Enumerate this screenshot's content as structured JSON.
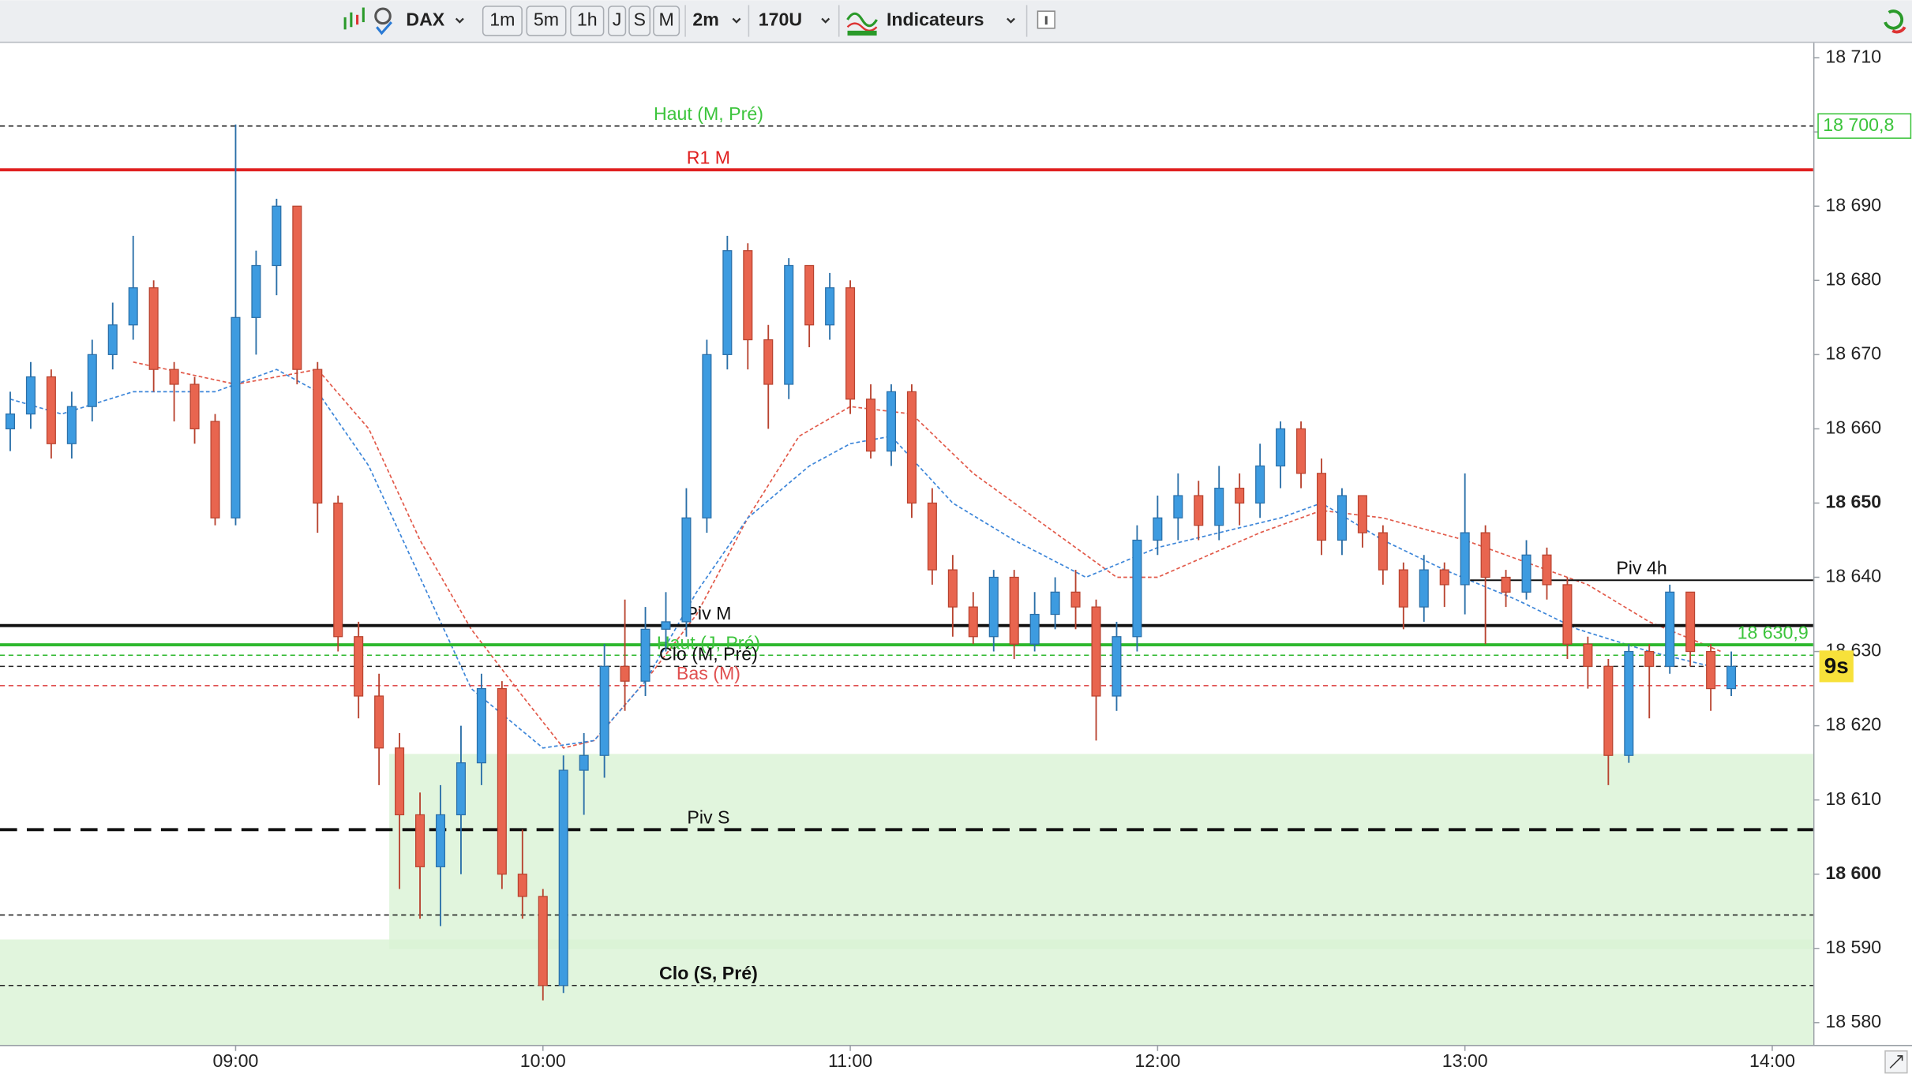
{
  "toolbar": {
    "symbol": "DAX",
    "periods": [
      "1m",
      "5m",
      "1h",
      "J",
      "S",
      "M"
    ],
    "interval": "2m",
    "units": "170U",
    "indicators": "Indicateurs"
  },
  "chart_data": {
    "type": "candlestick",
    "up_color": "#3d9be0",
    "down_color": "#e8654f",
    "xlim": [
      494,
      848
    ],
    "ylim": [
      18577,
      18712
    ],
    "xticks": [
      {
        "value": 540,
        "label": "09:00"
      },
      {
        "value": 600,
        "label": "10:00"
      },
      {
        "value": 660,
        "label": "11:00"
      },
      {
        "value": 720,
        "label": "12:00"
      },
      {
        "value": 780,
        "label": "13:00"
      },
      {
        "value": 840,
        "label": "14:00"
      }
    ],
    "yticks": [
      {
        "value": 18710,
        "label": "18 710"
      },
      {
        "value": 18700,
        "label": "18 700"
      },
      {
        "value": 18690,
        "label": "18 690"
      },
      {
        "value": 18680,
        "label": "18 680"
      },
      {
        "value": 18670,
        "label": "18 670"
      },
      {
        "value": 18660,
        "label": "18 660"
      },
      {
        "value": 18650,
        "label": "18 650"
      },
      {
        "value": 18640,
        "label": "18 640"
      },
      {
        "value": 18630,
        "label": "18 630"
      },
      {
        "value": 18620,
        "label": "18 620"
      },
      {
        "value": 18610,
        "label": "18 610"
      },
      {
        "value": 18600,
        "label": "18 600"
      },
      {
        "value": 18590,
        "label": "18 590"
      },
      {
        "value": 18580,
        "label": "18 580"
      }
    ],
    "x": [
      496,
      500,
      504,
      508,
      512,
      516,
      520,
      524,
      528,
      532,
      536,
      540,
      544,
      548,
      552,
      556,
      560,
      564,
      568,
      572,
      576,
      580,
      584,
      588,
      592,
      596,
      600,
      604,
      608,
      612,
      616,
      620,
      624,
      628,
      632,
      636,
      640,
      644,
      648,
      652,
      656,
      660,
      664,
      668,
      672,
      676,
      680,
      684,
      688,
      692,
      696,
      700,
      704,
      708,
      712,
      716,
      720,
      724,
      728,
      732,
      736,
      740,
      744,
      748,
      752,
      756,
      760,
      764,
      768,
      772,
      776,
      780,
      784,
      788,
      792,
      796,
      800,
      804,
      808,
      812,
      816,
      820,
      824,
      828,
      832
    ],
    "open": [
      18660,
      18662,
      18667,
      18658,
      18663,
      18670,
      18674,
      18679,
      18668,
      18666,
      18661,
      18648,
      18675,
      18682,
      18690,
      18668,
      18650,
      18632,
      18624,
      18617,
      18608,
      18601,
      18608,
      18615,
      18625,
      18600,
      18597,
      18585,
      18614,
      18616,
      18628,
      18626,
      18633,
      18634,
      18648,
      18670,
      18684,
      18672,
      18666,
      18682,
      18674,
      18679,
      18664,
      18657,
      18665,
      18650,
      18641,
      18636,
      18632,
      18640,
      18631,
      18635,
      18638,
      18636,
      18624,
      18632,
      18645,
      18648,
      18651,
      18647,
      18652,
      18650,
      18655,
      18660,
      18654,
      18645,
      18651,
      18646,
      18641,
      18636,
      18641,
      18639,
      18646,
      18640,
      18638,
      18643,
      18639,
      18631,
      18628,
      18616,
      18630,
      18628,
      18638,
      18630,
      18625
    ],
    "high": [
      18665,
      18669,
      18668,
      18665,
      18672,
      18677,
      18686,
      18680,
      18669,
      18667,
      18662,
      18701,
      18684,
      18691,
      18690,
      18669,
      18651,
      18634,
      18627,
      18619,
      18611,
      18612,
      18620,
      18627,
      18626,
      18606,
      18598,
      18616,
      18619,
      18631,
      18637,
      18636,
      18638,
      18652,
      18672,
      18686,
      18685,
      18674,
      18683,
      18682,
      18681,
      18680,
      18666,
      18666,
      18666,
      18652,
      18643,
      18638,
      18641,
      18641,
      18638,
      18640,
      18641,
      18637,
      18634,
      18647,
      18651,
      18654,
      18653,
      18655,
      18654,
      18658,
      18661,
      18661,
      18656,
      18652,
      18651,
      18647,
      18642,
      18643,
      18642,
      18654,
      18647,
      18641,
      18645,
      18644,
      18640,
      18632,
      18629,
      18631,
      18631,
      18639,
      18638,
      18631,
      18630
    ],
    "low": [
      18657,
      18660,
      18656,
      18656,
      18661,
      18668,
      18672,
      18665,
      18661,
      18658,
      18647,
      18647,
      18670,
      18678,
      18666,
      18646,
      18630,
      18621,
      18612,
      18598,
      18594,
      18593,
      18600,
      18612,
      18598,
      18594,
      18583,
      18584,
      18608,
      18613,
      18622,
      18624,
      18630,
      18632,
      18646,
      18668,
      18668,
      18660,
      18664,
      18671,
      18672,
      18662,
      18656,
      18655,
      18648,
      18639,
      18632,
      18631,
      18630,
      18629,
      18630,
      18633,
      18633,
      18618,
      18622,
      18630,
      18643,
      18645,
      18645,
      18645,
      18647,
      18648,
      18652,
      18652,
      18643,
      18643,
      18644,
      18639,
      18633,
      18634,
      18636,
      18635,
      18631,
      18636,
      18637,
      18637,
      18629,
      18625,
      18612,
      18615,
      18621,
      18627,
      18628,
      18622,
      18624
    ],
    "close": [
      18662,
      18667,
      18658,
      18663,
      18670,
      18674,
      18679,
      18668,
      18666,
      18660,
      18648,
      18675,
      18682,
      18690,
      18668,
      18650,
      18632,
      18624,
      18617,
      18608,
      18601,
      18608,
      18615,
      18625,
      18600,
      18597,
      18585,
      18614,
      18616,
      18628,
      18626,
      18633,
      18634,
      18648,
      18670,
      18684,
      18672,
      18666,
      18682,
      18674,
      18679,
      18664,
      18657,
      18665,
      18650,
      18641,
      18636,
      18632,
      18640,
      18631,
      18635,
      18638,
      18636,
      18624,
      18632,
      18645,
      18648,
      18651,
      18647,
      18652,
      18650,
      18655,
      18660,
      18654,
      18645,
      18651,
      18646,
      18641,
      18636,
      18641,
      18639,
      18646,
      18640,
      18638,
      18643,
      18639,
      18631,
      18628,
      18616,
      18630,
      18628,
      18638,
      18630,
      18625,
      18628
    ],
    "overlays": [
      {
        "color": "#e25a4a",
        "x": [
          520,
          540,
          556,
          566,
          576,
          586,
          596,
          604,
          610,
          620,
          630,
          640,
          650,
          660,
          672,
          684,
          700,
          712,
          720,
          740,
          752,
          764,
          780,
          792,
          804,
          816,
          830
        ],
        "values": [
          18669,
          18666,
          18668,
          18660,
          18645,
          18633,
          18624,
          18617,
          18618,
          18626,
          18635,
          18648,
          18659,
          18663,
          18662,
          18654,
          18646,
          18640,
          18640,
          18646,
          18649,
          18648,
          18645,
          18642,
          18639,
          18634,
          18630
        ]
      },
      {
        "color": "#3d86d9",
        "x": [
          496,
          506,
          520,
          536,
          548,
          556,
          566,
          576,
          586,
          600,
          610,
          620,
          630,
          640,
          652,
          660,
          668,
          680,
          692,
          706,
          720,
          732,
          744,
          752,
          764,
          776,
          790,
          802,
          816,
          828
        ],
        "values": [
          18664,
          18662,
          18665,
          18665,
          18668,
          18665,
          18655,
          18640,
          18625,
          18617,
          18618,
          18626,
          18638,
          18648,
          18655,
          18658,
          18659,
          18650,
          18645,
          18640,
          18644,
          18646,
          18648,
          18650,
          18645,
          18641,
          18637,
          18633,
          18630,
          18628
        ]
      }
    ],
    "zones": [
      {
        "color": "#d9f3d5",
        "high": 18591.2
      },
      {
        "color": "#d9f3d5",
        "from": 570,
        "low": 18589.9,
        "high": 18616.2
      }
    ],
    "levels": [
      {
        "label": "Haut (M, Pré)",
        "label_color": "#3cc43c",
        "value": 18700.8,
        "color": "#222222",
        "style": "dashed"
      },
      {
        "label": "R1 M",
        "label_color": "#e02020",
        "value": 18694.9,
        "color": "#e02020",
        "style": "solid-thick"
      },
      {
        "label": "Piv 4h",
        "label_color": "#111111",
        "value": 18639.6,
        "color": "#111111",
        "style": "solid",
        "from": 781
      },
      {
        "label": "Piv M",
        "label_color": "#111111",
        "value": 18633.5,
        "color": "#111111",
        "style": "solid-thick"
      },
      {
        "value": 18630.9,
        "color": "#2eb82e",
        "style": "solid-thick"
      },
      {
        "label": "Haut (J, Pré)",
        "label_color": "#3cc43c",
        "value": 18629.5,
        "color": "#2eb82e",
        "style": "dashed"
      },
      {
        "label": "Clo (M, Pré)",
        "label_color": "#111111",
        "value": 18628.0,
        "color": "#222222",
        "style": "dashed"
      },
      {
        "label": "Bas (M)",
        "label_color": "#e05050",
        "value": 18625.4,
        "color": "#e05050",
        "style": "dashed"
      },
      {
        "label": "Piv S",
        "label_color": "#111111",
        "value": 18606.0,
        "color": "#111111",
        "style": "dashed-thick"
      },
      {
        "value": 18594.5,
        "color": "#222222",
        "style": "dashed"
      },
      {
        "label": "Clo (S, Pré)",
        "label_color": "#111111",
        "value": 18585.0,
        "color": "#222222",
        "style": "dashed"
      }
    ],
    "price_labels": [
      {
        "value": 18700.8,
        "label": "18 700,8",
        "style": "box",
        "color": "#3cc43c"
      },
      {
        "value": 18630.9,
        "label": "18 630,9",
        "style": "text",
        "color": "#3cc43c"
      }
    ],
    "countdown": {
      "label": "9s",
      "value": 18628.0,
      "color": "#f7e13a"
    }
  }
}
